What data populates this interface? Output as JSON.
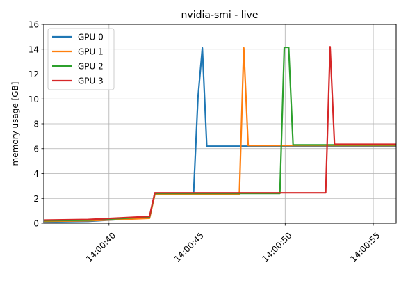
{
  "chart_data": {
    "type": "line",
    "title": "nvidia-smi - live",
    "xlabel": "",
    "ylabel": "memory usage [GB]",
    "x_axis": {
      "kind": "time",
      "range": [
        "14:00:36.3",
        "14:00:56.3"
      ],
      "ticks": [
        "14:00:40",
        "14:00:45",
        "14:00:50",
        "14:00:55"
      ]
    },
    "y_axis": {
      "range": [
        0,
        16
      ],
      "ticks": [
        "0",
        "2",
        "4",
        "6",
        "8",
        "10",
        "12",
        "14",
        "16"
      ]
    },
    "grid": true,
    "legend": {
      "placement": "top-left",
      "entries": [
        "GPU 0",
        "GPU 1",
        "GPU 2",
        "GPU 3"
      ]
    },
    "series": [
      {
        "name": "GPU 0",
        "color": "#1f77b4",
        "points": [
          [
            "14:00:36.3",
            0.1
          ],
          [
            "14:00:38.8",
            0.15
          ],
          [
            "14:00:42.3",
            0.45
          ],
          [
            "14:00:42.6",
            2.35
          ],
          [
            "14:00:44.8",
            2.35
          ],
          [
            "14:00:45.05",
            10.1
          ],
          [
            "14:00:45.3",
            14.1
          ],
          [
            "14:00:45.55",
            6.2
          ],
          [
            "14:00:56.3",
            6.2
          ]
        ]
      },
      {
        "name": "GPU 1",
        "color": "#ff7f0e",
        "points": [
          [
            "14:00:36.3",
            0.15
          ],
          [
            "14:00:38.8",
            0.2
          ],
          [
            "14:00:42.3",
            0.4
          ],
          [
            "14:00:42.6",
            2.3
          ],
          [
            "14:00:47.4",
            2.3
          ],
          [
            "14:00:47.65",
            14.1
          ],
          [
            "14:00:47.9",
            6.25
          ],
          [
            "14:00:56.3",
            6.25
          ]
        ]
      },
      {
        "name": "GPU 2",
        "color": "#2ca02c",
        "points": [
          [
            "14:00:36.3",
            0.2
          ],
          [
            "14:00:38.8",
            0.25
          ],
          [
            "14:00:42.3",
            0.5
          ],
          [
            "14:00:42.6",
            2.4
          ],
          [
            "14:00:49.7",
            2.4
          ],
          [
            "14:00:49.95",
            14.15
          ],
          [
            "14:00:50.2",
            14.15
          ],
          [
            "14:00:50.45",
            6.3
          ],
          [
            "14:00:56.3",
            6.3
          ]
        ]
      },
      {
        "name": "GPU 3",
        "color": "#d62728",
        "points": [
          [
            "14:00:36.3",
            0.25
          ],
          [
            "14:00:38.8",
            0.3
          ],
          [
            "14:00:42.3",
            0.55
          ],
          [
            "14:00:42.6",
            2.45
          ],
          [
            "14:00:52.3",
            2.45
          ],
          [
            "14:00:52.55",
            14.2
          ],
          [
            "14:00:52.8",
            6.35
          ],
          [
            "14:00:56.3",
            6.35
          ]
        ]
      }
    ]
  }
}
